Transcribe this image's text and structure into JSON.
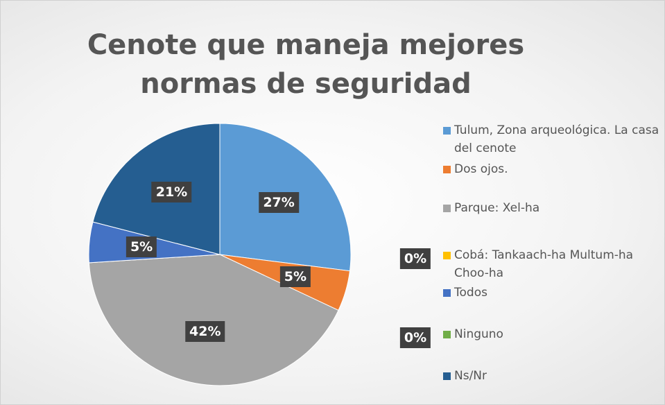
{
  "chart_data": {
    "type": "pie",
    "title": "Cenote que maneja mejores normas de seguridad",
    "categories": [
      "Tulum, Zona arqueológica. La casa del cenote",
      "Dos ojos.",
      "Parque: Xel-ha",
      "Cobá: Tankaach-ha Multum-ha Choo-ha",
      "Todos",
      "Ninguno",
      "Ns/Nr"
    ],
    "values": [
      27,
      5,
      42,
      0,
      5,
      0,
      21
    ],
    "value_labels": [
      "27%",
      "5%",
      "42%",
      "0%",
      "5%",
      "0%",
      "21%"
    ],
    "colors": [
      "#5b9bd5",
      "#ed7d31",
      "#a5a5a5",
      "#ffc000",
      "#4472c4",
      "#70ad47",
      "#255e91"
    ],
    "legend": "right"
  }
}
